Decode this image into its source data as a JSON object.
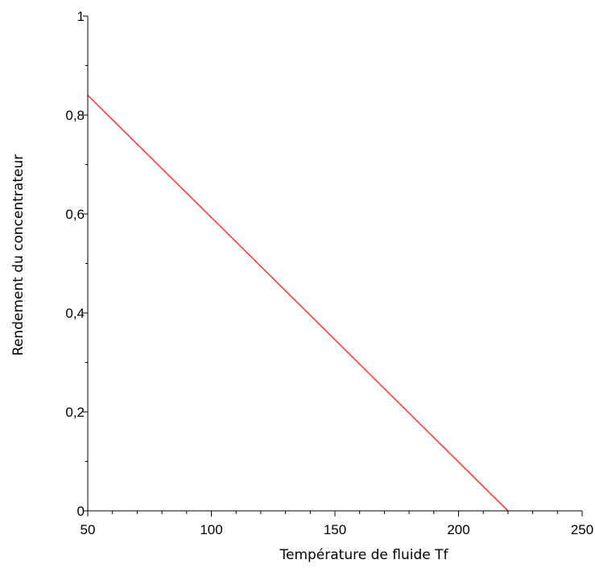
{
  "chart_data": {
    "type": "line",
    "title": "",
    "xlabel": "Température de fluide Tf",
    "ylabel": "Rendement du concentrateur",
    "xlim": [
      50,
      250
    ],
    "ylim": [
      0,
      1
    ],
    "x_ticks": [
      50,
      100,
      150,
      200,
      250
    ],
    "x_tick_labels": [
      "50",
      "100",
      "150",
      "200",
      "250"
    ],
    "y_ticks": [
      0,
      0.2,
      0.4,
      0.6,
      0.8,
      1
    ],
    "y_tick_labels": [
      "0",
      "0,2",
      "0,4",
      "0,6",
      "0,8",
      "1"
    ],
    "grid": false,
    "legend": "none",
    "series": [
      {
        "x": [
          50,
          220
        ],
        "y": [
          0.84,
          0.0
        ],
        "color": "#ff3c3c"
      }
    ],
    "axis_color": "#000000"
  }
}
